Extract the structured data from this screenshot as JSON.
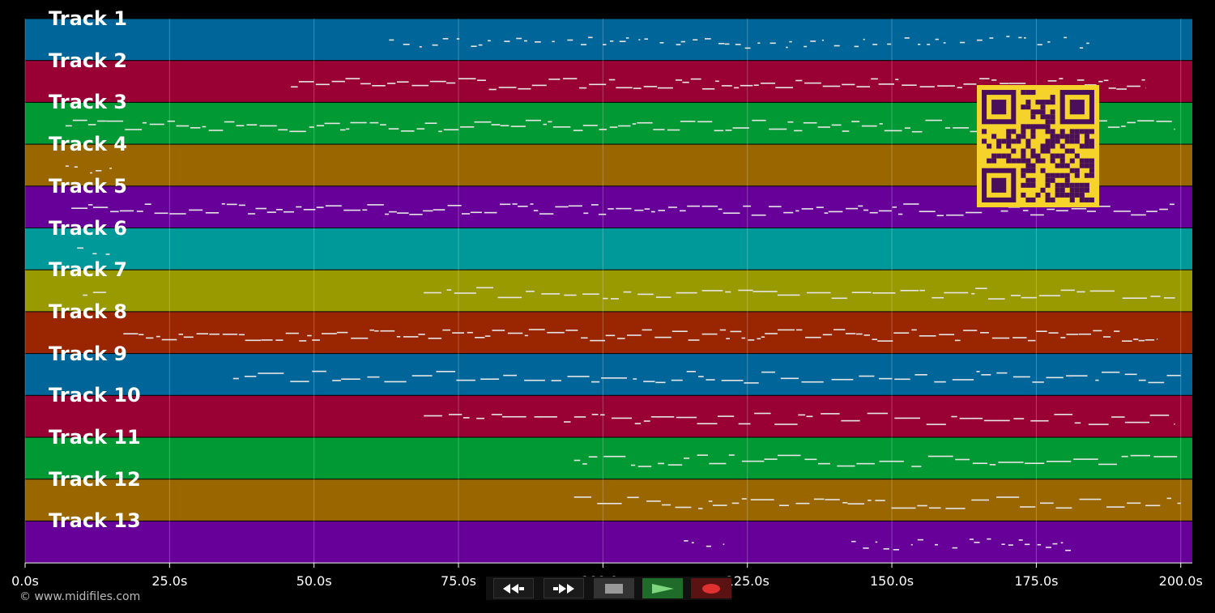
{
  "app": {
    "copyright": "© www.midifiles.com"
  },
  "chart_data": {
    "type": "piano-roll",
    "x_unit": "seconds",
    "xlim": [
      0,
      202
    ],
    "x_ticks": [
      "0.0s",
      "25.0s",
      "50.0s",
      "75.0s",
      "100.0s",
      "125.0s",
      "150.0s",
      "175.0s",
      "200.0s"
    ],
    "x_tick_values": [
      0,
      25,
      50,
      75,
      100,
      125,
      150,
      175,
      200
    ],
    "grid": true,
    "tracks": [
      {
        "name": "Track 1",
        "color": "#006699",
        "note_segments": [
          [
            63,
            186
          ]
        ],
        "style": "sparse"
      },
      {
        "name": "Track 2",
        "color": "#990033",
        "note_segments": [
          [
            46,
            194
          ]
        ],
        "style": "dense"
      },
      {
        "name": "Track 3",
        "color": "#009933",
        "note_segments": [
          [
            7,
            199
          ]
        ],
        "style": "dense"
      },
      {
        "name": "Track 4",
        "color": "#996600",
        "note_segments": [
          [
            7,
            15
          ]
        ],
        "style": "sparse"
      },
      {
        "name": "Track 5",
        "color": "#660099",
        "note_segments": [
          [
            8,
            199
          ]
        ],
        "style": "dense"
      },
      {
        "name": "Track 6",
        "color": "#009999",
        "note_segments": [
          [
            9,
            15
          ]
        ],
        "style": "sparse"
      },
      {
        "name": "Track 7",
        "color": "#999900",
        "note_segments": [
          [
            10,
            14
          ],
          [
            69,
            199
          ]
        ],
        "style": "medium"
      },
      {
        "name": "Track 8",
        "color": "#992600",
        "note_segments": [
          [
            17,
            196
          ]
        ],
        "style": "dense"
      },
      {
        "name": "Track 9",
        "color": "#006699",
        "note_segments": [
          [
            36,
            200
          ]
        ],
        "style": "medium"
      },
      {
        "name": "Track 10",
        "color": "#990033",
        "note_segments": [
          [
            69,
            199
          ]
        ],
        "style": "medium"
      },
      {
        "name": "Track 11",
        "color": "#009933",
        "note_segments": [
          [
            95,
            200
          ]
        ],
        "style": "medium"
      },
      {
        "name": "Track 12",
        "color": "#996600",
        "note_segments": [
          [
            95,
            200
          ]
        ],
        "style": "medium"
      },
      {
        "name": "Track 13",
        "color": "#660099",
        "note_segments": [
          [
            114,
            121
          ],
          [
            143,
            181
          ]
        ],
        "style": "sparse"
      }
    ]
  },
  "transport": {
    "buttons": [
      {
        "name": "rewind-button",
        "icon": "rewind-icon"
      },
      {
        "name": "fast-forward-button",
        "icon": "fast-forward-icon"
      },
      {
        "name": "stop-button",
        "icon": "stop-icon"
      },
      {
        "name": "play-button",
        "icon": "play-icon",
        "color": "#2e7d32"
      },
      {
        "name": "record-button",
        "icon": "record-icon",
        "color": "#8b1a1a"
      }
    ]
  },
  "overlay": {
    "qr_code": {
      "icon": "qr-code-icon",
      "color": "#f5d32a",
      "dark_color": "#4a0f5a"
    }
  }
}
